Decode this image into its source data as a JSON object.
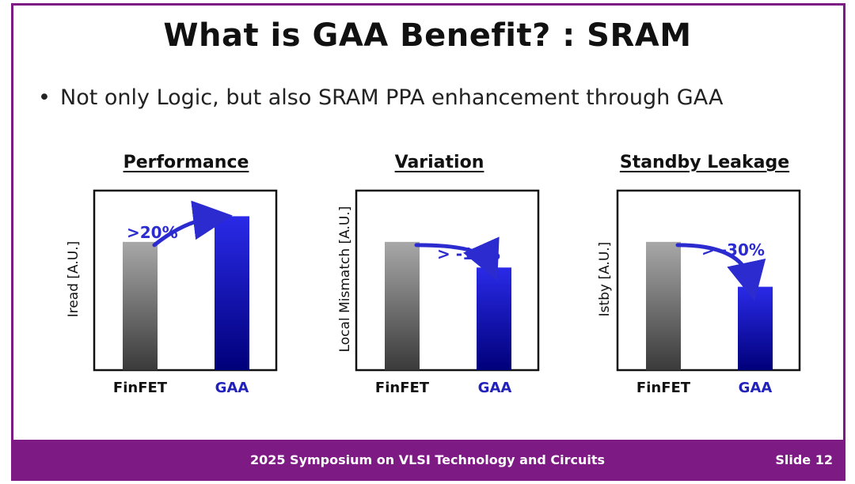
{
  "slide": {
    "title": "What is GAA Benefit? : SRAM",
    "bullet_marker": "•",
    "bullet": "Not only Logic, but also SRAM PPA enhancement through GAA",
    "footer": "2025 Symposium on VLSI Technology and Circuits",
    "slide_number": "Slide 12"
  },
  "colors": {
    "frame": "#7e1a84",
    "gaa": "#1a1ad0",
    "finfet": "#888888",
    "delta_text": "#2b2bd0"
  },
  "chart_data": [
    {
      "type": "bar",
      "title": "Performance",
      "ylabel": "Iread [A.U.]",
      "xlabel": "",
      "categories": [
        "FinFET",
        "GAA"
      ],
      "values": [
        1.0,
        1.2
      ],
      "ylim": [
        0,
        1.4
      ],
      "annotation": ">20%",
      "arrow_direction": "up"
    },
    {
      "type": "bar",
      "title": "Variation",
      "ylabel": "Local Mismatch [A.U.]",
      "xlabel": "",
      "categories": [
        "FinFET",
        "GAA"
      ],
      "values": [
        1.0,
        0.8
      ],
      "ylim": [
        0,
        1.4
      ],
      "annotation": "> -10%",
      "arrow_direction": "down"
    },
    {
      "type": "bar",
      "title": "Standby Leakage",
      "ylabel": "Istby [A.U.]",
      "xlabel": "",
      "categories": [
        "FinFET",
        "GAA"
      ],
      "values": [
        1.0,
        0.65
      ],
      "ylim": [
        0,
        1.4
      ],
      "annotation": "> -30%",
      "arrow_direction": "down"
    }
  ]
}
